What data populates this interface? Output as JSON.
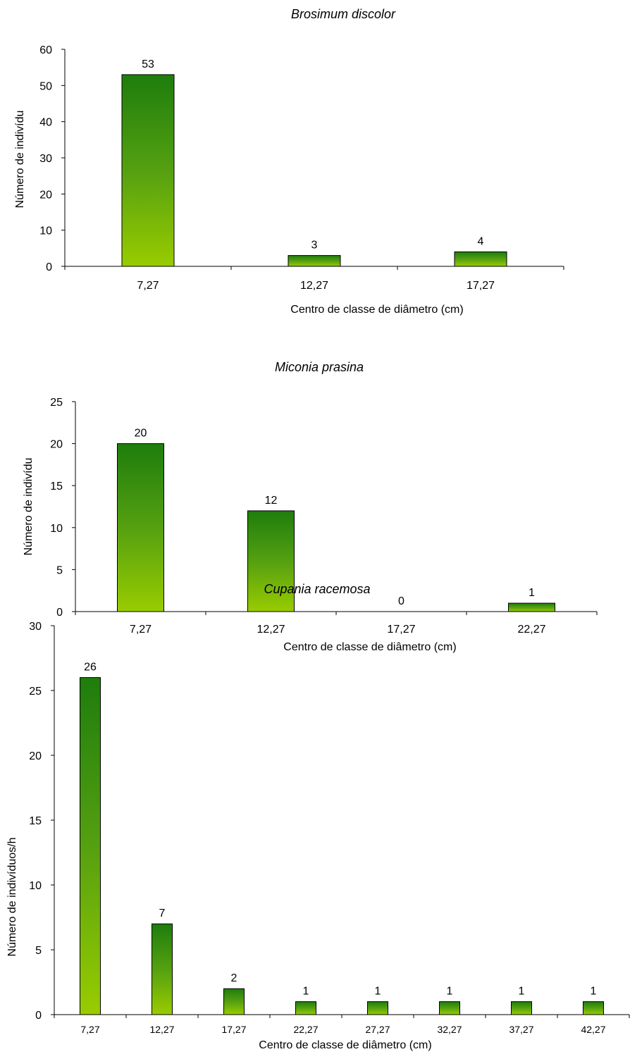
{
  "chart_data": [
    {
      "type": "bar",
      "title": "Brosimum discolor",
      "xlabel": "Centro de classe de diâmetro (cm)",
      "ylabel": "Número de indivídu",
      "categories": [
        "7,27",
        "12,27",
        "17,27"
      ],
      "values": [
        53,
        3,
        4
      ],
      "ylim": [
        0,
        60
      ],
      "yticks": [
        0,
        10,
        20,
        30,
        40,
        50,
        60
      ],
      "grid": false,
      "colors": {
        "bar_top": "#1e7d0c",
        "bar_bottom": "#99cc00",
        "bar_stroke": "#000000"
      }
    },
    {
      "type": "bar",
      "title": "Miconia prasina",
      "xlabel": "Centro de classe de diâmetro (cm)",
      "ylabel": "Número de indivídu",
      "categories": [
        "7,27",
        "12,27",
        "17,27",
        "22,27"
      ],
      "values": [
        20,
        12,
        0,
        1
      ],
      "ylim": [
        0,
        25
      ],
      "yticks": [
        0,
        5,
        10,
        15,
        20,
        25
      ],
      "grid": false,
      "colors": {
        "bar_top": "#1e7d0c",
        "bar_bottom": "#99cc00",
        "bar_stroke": "#000000"
      }
    },
    {
      "type": "bar",
      "title": "Cupania racemosa",
      "xlabel": "Centro de classe de diâmetro (cm)",
      "ylabel": "Número de indivíduos/h",
      "categories": [
        "7,27",
        "12,27",
        "17,27",
        "22,27",
        "27,27",
        "32,27",
        "37,27",
        "42,27"
      ],
      "values": [
        26,
        7,
        2,
        1,
        1,
        1,
        1,
        1
      ],
      "ylim": [
        0,
        30
      ],
      "yticks": [
        0,
        5,
        10,
        15,
        20,
        25,
        30
      ],
      "grid": false,
      "colors": {
        "bar_top": "#1e7d0c",
        "bar_bottom": "#99cc00",
        "bar_stroke": "#000000"
      }
    }
  ]
}
